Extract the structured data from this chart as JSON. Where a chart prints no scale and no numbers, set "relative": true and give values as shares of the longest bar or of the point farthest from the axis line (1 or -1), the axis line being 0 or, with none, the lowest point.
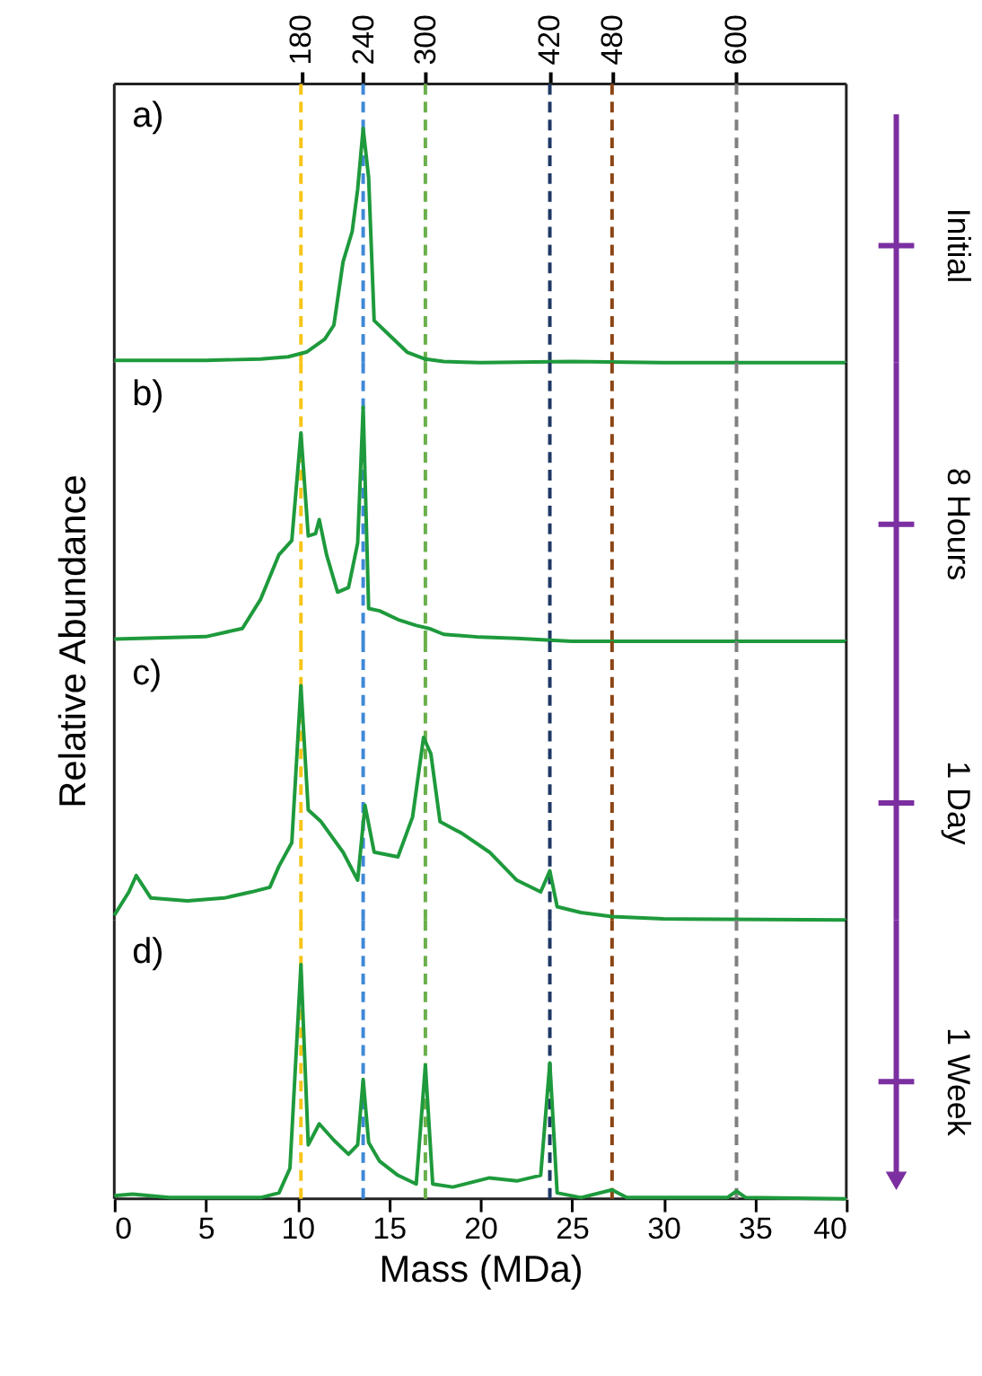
{
  "chart_data": [
    {
      "type": "line",
      "relative": true,
      "annotations": [
        "a)"
      ],
      "y2label": "Initial",
      "xlim": [
        0,
        40
      ],
      "x2lim": [
        0,
        705.9
      ],
      "x2ticks": [
        180,
        240,
        300,
        420,
        480,
        600
      ],
      "tick_labels": "x2",
      "x": [
        0,
        5,
        8,
        9.5,
        10.5,
        11.5,
        12,
        12.5,
        13,
        13.3,
        13.6,
        13.9,
        14.2,
        15,
        16,
        17,
        18,
        20,
        25,
        30,
        40
      ],
      "series": [
        {
          "color": "#1e9a3c",
          "values": [
            0.01,
            0.01,
            0.015,
            0.025,
            0.045,
            0.1,
            0.16,
            0.43,
            0.56,
            0.74,
            1.0,
            0.79,
            0.18,
            0.12,
            0.045,
            0.015,
            0.005,
            0.0,
            0.005,
            0.0,
            0.0
          ]
        }
      ],
      "ref_lines": [
        {
          "axis": "x",
          "value": 10.2,
          "color": "#f5c518",
          "line_style": "dashed"
        },
        {
          "axis": "x",
          "value": 13.6,
          "color": "#3f88d6",
          "line_style": "dashed"
        },
        {
          "axis": "x",
          "value": 17.0,
          "color": "#6ab04c",
          "line_style": "dashed"
        },
        {
          "axis": "x",
          "value": 23.8,
          "color": "#1f3864",
          "line_style": "dashed"
        },
        {
          "axis": "x",
          "value": 27.2,
          "color": "#8b4513",
          "line_style": "dashed"
        },
        {
          "axis": "x",
          "value": 34.0,
          "color": "#808080",
          "line_style": "dashed"
        }
      ]
    },
    {
      "type": "line",
      "relative": true,
      "annotations": [
        "b)"
      ],
      "y2label": "8 Hours",
      "ylabel": "Relative Abundance",
      "xlim": [
        0,
        40
      ],
      "tick_labels": false,
      "x": [
        0,
        5,
        7,
        8,
        9,
        9.7,
        10.2,
        10.6,
        11,
        11.2,
        11.6,
        12.2,
        12.8,
        13.3,
        13.6,
        13.9,
        14.5,
        15.5,
        16.5,
        17.2,
        18,
        20,
        22,
        23.8,
        25,
        40
      ],
      "series": [
        {
          "color": "#1e9a3c",
          "values": [
            0.01,
            0.02,
            0.055,
            0.18,
            0.37,
            0.43,
            0.89,
            0.45,
            0.46,
            0.52,
            0.37,
            0.21,
            0.23,
            0.42,
            1.0,
            0.14,
            0.13,
            0.093,
            0.068,
            0.055,
            0.03,
            0.018,
            0.013,
            0.005,
            0.0,
            0.0
          ]
        }
      ],
      "ref_lines": [
        {
          "axis": "x",
          "value": 10.2,
          "color": "#f5c518",
          "line_style": "dashed"
        },
        {
          "axis": "x",
          "value": 13.6,
          "color": "#3f88d6",
          "line_style": "dashed"
        },
        {
          "axis": "x",
          "value": 17.0,
          "color": "#6ab04c",
          "line_style": "dashed"
        },
        {
          "axis": "x",
          "value": 23.8,
          "color": "#1f3864",
          "line_style": "dashed"
        },
        {
          "axis": "x",
          "value": 27.2,
          "color": "#8b4513",
          "line_style": "dashed"
        },
        {
          "axis": "x",
          "value": 34.0,
          "color": "#808080",
          "line_style": "dashed"
        }
      ]
    },
    {
      "type": "line",
      "relative": true,
      "annotations": [
        "c)"
      ],
      "y2label": "1 Day",
      "xlim": [
        0,
        40
      ],
      "tick_labels": false,
      "x": [
        0,
        0.8,
        1.2,
        2,
        4,
        6,
        7.5,
        8.5,
        9,
        9.7,
        10.2,
        10.6,
        11.3,
        12.5,
        13.3,
        13.7,
        14.2,
        15.5,
        16.3,
        16.9,
        17.3,
        17.8,
        19,
        20.5,
        22,
        23.3,
        23.8,
        24.2,
        25.5,
        27.2,
        30,
        40
      ],
      "series": [
        {
          "color": "#1e9a3c",
          "values": [
            0.02,
            0.12,
            0.19,
            0.094,
            0.082,
            0.094,
            0.12,
            0.14,
            0.23,
            0.33,
            1.0,
            0.47,
            0.42,
            0.29,
            0.17,
            0.49,
            0.29,
            0.27,
            0.44,
            0.78,
            0.71,
            0.42,
            0.37,
            0.29,
            0.17,
            0.12,
            0.21,
            0.057,
            0.032,
            0.015,
            0.005,
            0.0
          ]
        }
      ],
      "ref_lines": [
        {
          "axis": "x",
          "value": 10.2,
          "color": "#f5c518",
          "line_style": "dashed"
        },
        {
          "axis": "x",
          "value": 13.6,
          "color": "#3f88d6",
          "line_style": "dashed"
        },
        {
          "axis": "x",
          "value": 17.0,
          "color": "#6ab04c",
          "line_style": "dashed"
        },
        {
          "axis": "x",
          "value": 23.8,
          "color": "#1f3864",
          "line_style": "dashed"
        },
        {
          "axis": "x",
          "value": 27.2,
          "color": "#8b4513",
          "line_style": "dashed"
        },
        {
          "axis": "x",
          "value": 34.0,
          "color": "#808080",
          "line_style": "dashed"
        }
      ]
    },
    {
      "type": "line",
      "relative": true,
      "annotations": [
        "d)"
      ],
      "y2label": "1 Week",
      "xlabel": "Mass (MDa)",
      "xlim": [
        0,
        40
      ],
      "xticks": [
        0,
        5,
        10,
        15,
        20,
        25,
        30,
        35,
        40
      ],
      "tick_labels": "x",
      "x": [
        0,
        1,
        3,
        8,
        9,
        9.6,
        10.2,
        10.6,
        11.2,
        12,
        12.8,
        13.3,
        13.6,
        13.9,
        14.5,
        15.5,
        16.5,
        17,
        17.4,
        18.5,
        20.5,
        22,
        23.3,
        23.8,
        24.2,
        25.5,
        27.2,
        28,
        33.5,
        34,
        34.5,
        40
      ],
      "series": [
        {
          "color": "#1e9a3c",
          "values": [
            0.013,
            0.02,
            0.005,
            0.005,
            0.025,
            0.13,
            1.0,
            0.23,
            0.32,
            0.25,
            0.19,
            0.23,
            0.51,
            0.24,
            0.16,
            0.1,
            0.063,
            0.57,
            0.063,
            0.05,
            0.089,
            0.076,
            0.1,
            0.58,
            0.025,
            0.005,
            0.038,
            0.005,
            0.005,
            0.033,
            0.005,
            0.0
          ]
        }
      ],
      "ref_lines": [
        {
          "axis": "x",
          "value": 10.2,
          "color": "#f5c518",
          "line_style": "dashed"
        },
        {
          "axis": "x",
          "value": 13.6,
          "color": "#3f88d6",
          "line_style": "dashed"
        },
        {
          "axis": "x",
          "value": 17.0,
          "color": "#6ab04c",
          "line_style": "dashed"
        },
        {
          "axis": "x",
          "value": 23.8,
          "color": "#1f3864",
          "line_style": "dashed"
        },
        {
          "axis": "x",
          "value": 27.2,
          "color": "#8b4513",
          "line_style": "dashed"
        },
        {
          "axis": "x",
          "value": 34.0,
          "color": "#808080",
          "line_style": "dashed"
        }
      ]
    }
  ]
}
